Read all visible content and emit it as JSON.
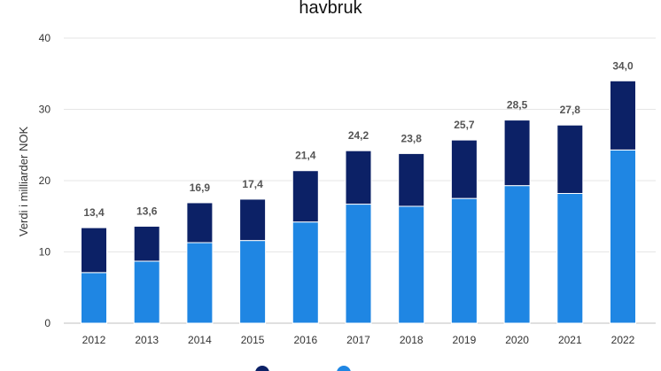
{
  "chart_data": {
    "type": "bar",
    "stacked": true,
    "title": "havbruk",
    "ylabel": "Verdi i milliarder NOK",
    "xlabel": "",
    "ylim": [
      0,
      40
    ],
    "yticks": [
      0,
      10,
      20,
      30,
      40
    ],
    "grid": true,
    "legend_position": "bottom",
    "categories": [
      "2012",
      "2013",
      "2014",
      "2015",
      "2016",
      "2017",
      "2018",
      "2019",
      "2020",
      "2021",
      "2022"
    ],
    "series": [
      {
        "name": "",
        "color": "#1f86e3",
        "values": [
          7.1,
          8.7,
          11.3,
          11.6,
          14.2,
          16.7,
          16.4,
          17.5,
          19.3,
          18.2,
          24.3
        ]
      },
      {
        "name": "",
        "color": "#0c2166",
        "values": [
          6.3,
          4.9,
          5.6,
          5.8,
          7.2,
          7.5,
          7.4,
          8.2,
          9.2,
          9.6,
          9.7
        ]
      }
    ],
    "total_labels": [
      "13,4",
      "13,6",
      "16,9",
      "17,4",
      "21,4",
      "24,2",
      "23,8",
      "25,7",
      "28,5",
      "27,8",
      "34,0"
    ]
  }
}
